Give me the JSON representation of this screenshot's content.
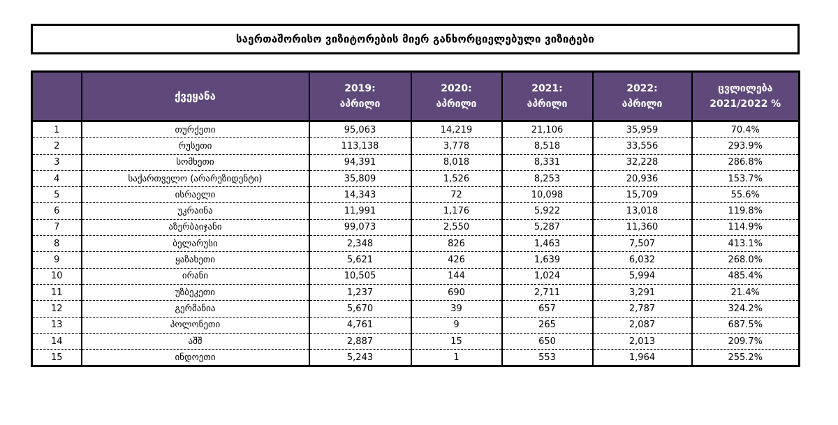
{
  "title": "საერთაშორისო ვიზიტორების მიერ განხორციელებული ვიზიტები",
  "colors": {
    "header_bg": "#5f497a",
    "header_text": "#ffffff",
    "border": "#000000"
  },
  "table": {
    "headers": {
      "num": "",
      "country": "ქვეყანა",
      "y2019": [
        "2019:",
        "აპრილი"
      ],
      "y2020": [
        "2020:",
        "აპრილი"
      ],
      "y2021": [
        "2021:",
        "აპრილი"
      ],
      "y2022": [
        "2022:",
        "აპრილი"
      ],
      "change": [
        "ცვლილება",
        "2021/2022 %"
      ]
    },
    "rows": [
      {
        "num": "1",
        "country": "თურქეთი",
        "y2019": "95,063",
        "y2020": "14,219",
        "y2021": "21,106",
        "y2022": "35,959",
        "change": "70.4%"
      },
      {
        "num": "2",
        "country": "რუსეთი",
        "y2019": "113,138",
        "y2020": "3,778",
        "y2021": "8,518",
        "y2022": "33,556",
        "change": "293.9%"
      },
      {
        "num": "3",
        "country": "სომხეთი",
        "y2019": "94,391",
        "y2020": "8,018",
        "y2021": "8,331",
        "y2022": "32,228",
        "change": "286.8%"
      },
      {
        "num": "4",
        "country": "საქართველო (არარეზიდენტი)",
        "y2019": "35,809",
        "y2020": "1,526",
        "y2021": "8,253",
        "y2022": "20,936",
        "change": "153.7%"
      },
      {
        "num": "5",
        "country": "ისრაელი",
        "y2019": "14,343",
        "y2020": "72",
        "y2021": "10,098",
        "y2022": "15,709",
        "change": "55.6%"
      },
      {
        "num": "6",
        "country": "უკრაინა",
        "y2019": "11,991",
        "y2020": "1,176",
        "y2021": "5,922",
        "y2022": "13,018",
        "change": "119.8%"
      },
      {
        "num": "7",
        "country": "აზერბაიჯანი",
        "y2019": "99,073",
        "y2020": "2,550",
        "y2021": "5,287",
        "y2022": "11,360",
        "change": "114.9%"
      },
      {
        "num": "8",
        "country": "ბელარუსი",
        "y2019": "2,348",
        "y2020": "826",
        "y2021": "1,463",
        "y2022": "7,507",
        "change": "413.1%"
      },
      {
        "num": "9",
        "country": "ყაზახეთი",
        "y2019": "5,621",
        "y2020": "426",
        "y2021": "1,639",
        "y2022": "6,032",
        "change": "268.0%"
      },
      {
        "num": "10",
        "country": "ირანი",
        "y2019": "10,505",
        "y2020": "144",
        "y2021": "1,024",
        "y2022": "5,994",
        "change": "485.4%"
      },
      {
        "num": "11",
        "country": "უზბეკეთი",
        "y2019": "1,237",
        "y2020": "690",
        "y2021": "2,711",
        "y2022": "3,291",
        "change": "21.4%"
      },
      {
        "num": "12",
        "country": "გერმანია",
        "y2019": "5,670",
        "y2020": "39",
        "y2021": "657",
        "y2022": "2,787",
        "change": "324.2%"
      },
      {
        "num": "13",
        "country": "პოლონეთი",
        "y2019": "4,761",
        "y2020": "9",
        "y2021": "265",
        "y2022": "2,087",
        "change": "687.5%"
      },
      {
        "num": "14",
        "country": "აშშ",
        "y2019": "2,887",
        "y2020": "15",
        "y2021": "650",
        "y2022": "2,013",
        "change": "209.7%"
      },
      {
        "num": "15",
        "country": "ინდოეთი",
        "y2019": "5,243",
        "y2020": "1",
        "y2021": "553",
        "y2022": "1,964",
        "change": "255.2%"
      }
    ]
  }
}
